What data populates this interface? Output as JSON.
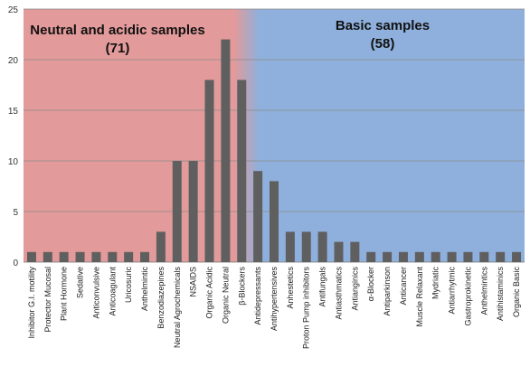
{
  "chart_data": {
    "type": "bar",
    "categories": [
      "Inhibitor G.I. motility",
      "Protector Mucosal",
      "Plant Hormone",
      "Sedative",
      "Anticonvulsive",
      "Anticoagulant",
      "Uricosuric",
      "Anthelmintic",
      "Benzodiazepines",
      "Neutral Agrochemicals",
      "NSAIDS",
      "Organic Acidic",
      "Organic Neutral",
      "β-Blockers",
      "Antidepressants",
      "Antihypertensives",
      "Anhestetics",
      "Proton Pump inhibitors",
      "Antifungals",
      "Antiasthmatics",
      "Antianginics",
      "α-Blocker",
      "Antiparkinson",
      "Anticancer",
      "Muscle Relaxant",
      "Mydriatic",
      "Antiarrhytmic",
      "Gastroprokinetic",
      "Anthelmintics",
      "Antihistaminics",
      "Organic Basic"
    ],
    "values": [
      1,
      1,
      1,
      1,
      1,
      1,
      1,
      1,
      3,
      10,
      10,
      18,
      22,
      18,
      9,
      8,
      3,
      3,
      3,
      2,
      2,
      1,
      1,
      1,
      1,
      1,
      1,
      1,
      1,
      1,
      1
    ],
    "ylim": [
      0,
      25
    ],
    "yticks": [
      0,
      5,
      10,
      15,
      20,
      25
    ],
    "grid": true,
    "bar_color": "#5f5f5f",
    "regions": [
      {
        "label": "Neutral and acidic samples",
        "count": "(71)",
        "color": "#e39a9a"
      },
      {
        "label": "Basic samples",
        "count": "(58)",
        "color": "#8fb0dc"
      }
    ]
  }
}
